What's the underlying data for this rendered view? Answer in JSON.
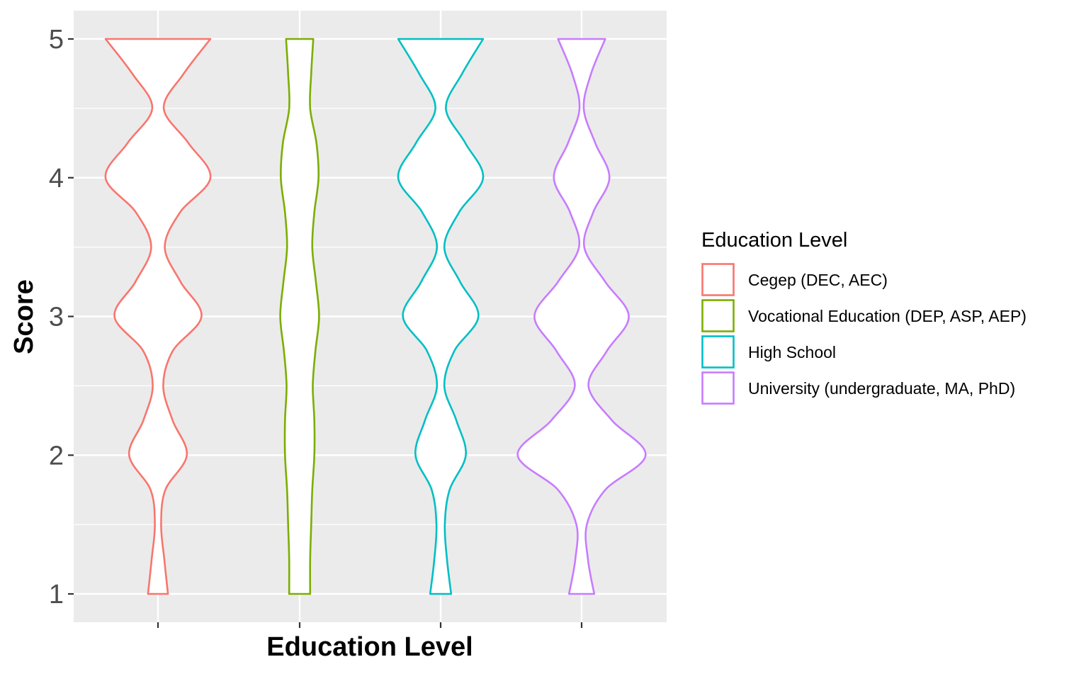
{
  "chart_data": {
    "type": "violin",
    "xlabel": "Education Level",
    "ylabel": "Score",
    "ylim": [
      0.8,
      5.2
    ],
    "yticks": [
      "1",
      "2",
      "3",
      "4",
      "5"
    ],
    "grid": true,
    "legend": {
      "title": "Education Level",
      "placement": "right"
    },
    "series": [
      {
        "name": "Cegep (DEC, AEC)",
        "color": "#F8766D",
        "range": [
          1,
          5
        ],
        "density": [
          [
            1.0,
            0.19
          ],
          [
            1.25,
            0.12
          ],
          [
            1.5,
            0.06
          ],
          [
            1.75,
            0.14
          ],
          [
            2.0,
            0.55
          ],
          [
            2.25,
            0.28
          ],
          [
            2.5,
            0.1
          ],
          [
            2.75,
            0.28
          ],
          [
            3.0,
            0.83
          ],
          [
            3.25,
            0.43
          ],
          [
            3.5,
            0.13
          ],
          [
            3.75,
            0.42
          ],
          [
            4.0,
            1.0
          ],
          [
            4.25,
            0.58
          ],
          [
            4.5,
            0.11
          ],
          [
            4.75,
            0.49
          ],
          [
            5.0,
            1.0
          ]
        ]
      },
      {
        "name": "Vocational Education (DEP, ASP, AEP)",
        "color": "#7CAE00",
        "range": [
          1,
          5
        ],
        "density": [
          [
            1.0,
            0.2
          ],
          [
            1.25,
            0.2
          ],
          [
            1.5,
            0.22
          ],
          [
            1.75,
            0.24
          ],
          [
            2.0,
            0.28
          ],
          [
            2.25,
            0.28
          ],
          [
            2.5,
            0.25
          ],
          [
            2.75,
            0.3
          ],
          [
            3.0,
            0.37
          ],
          [
            3.25,
            0.31
          ],
          [
            3.5,
            0.24
          ],
          [
            3.75,
            0.28
          ],
          [
            4.0,
            0.36
          ],
          [
            4.25,
            0.32
          ],
          [
            4.5,
            0.2
          ],
          [
            4.75,
            0.22
          ],
          [
            5.0,
            0.26
          ]
        ]
      },
      {
        "name": "High School",
        "color": "#00BFC4",
        "range": [
          1,
          5
        ],
        "density": [
          [
            1.0,
            0.2
          ],
          [
            1.25,
            0.12
          ],
          [
            1.5,
            0.08
          ],
          [
            1.75,
            0.17
          ],
          [
            2.0,
            0.48
          ],
          [
            2.25,
            0.3
          ],
          [
            2.5,
            0.07
          ],
          [
            2.75,
            0.26
          ],
          [
            3.0,
            0.72
          ],
          [
            3.25,
            0.37
          ],
          [
            3.5,
            0.07
          ],
          [
            3.75,
            0.35
          ],
          [
            4.0,
            0.81
          ],
          [
            4.25,
            0.47
          ],
          [
            4.5,
            0.1
          ],
          [
            4.75,
            0.41
          ],
          [
            5.0,
            0.81
          ]
        ]
      },
      {
        "name": "University (undergraduate, MA, PhD)",
        "color": "#C77CFF",
        "range": [
          1,
          5
        ],
        "density": [
          [
            1.0,
            0.24
          ],
          [
            1.25,
            0.12
          ],
          [
            1.5,
            0.1
          ],
          [
            1.75,
            0.45
          ],
          [
            2.0,
            1.22
          ],
          [
            2.25,
            0.58
          ],
          [
            2.5,
            0.13
          ],
          [
            2.75,
            0.48
          ],
          [
            3.0,
            0.9
          ],
          [
            3.25,
            0.45
          ],
          [
            3.5,
            0.05
          ],
          [
            3.75,
            0.22
          ],
          [
            4.0,
            0.53
          ],
          [
            4.25,
            0.26
          ],
          [
            4.5,
            0.04
          ],
          [
            4.75,
            0.18
          ],
          [
            5.0,
            0.45
          ]
        ]
      }
    ]
  },
  "colors": {
    "panel": "#EBEBEB",
    "grid": "#FFFFFF",
    "tick": "#333333"
  }
}
